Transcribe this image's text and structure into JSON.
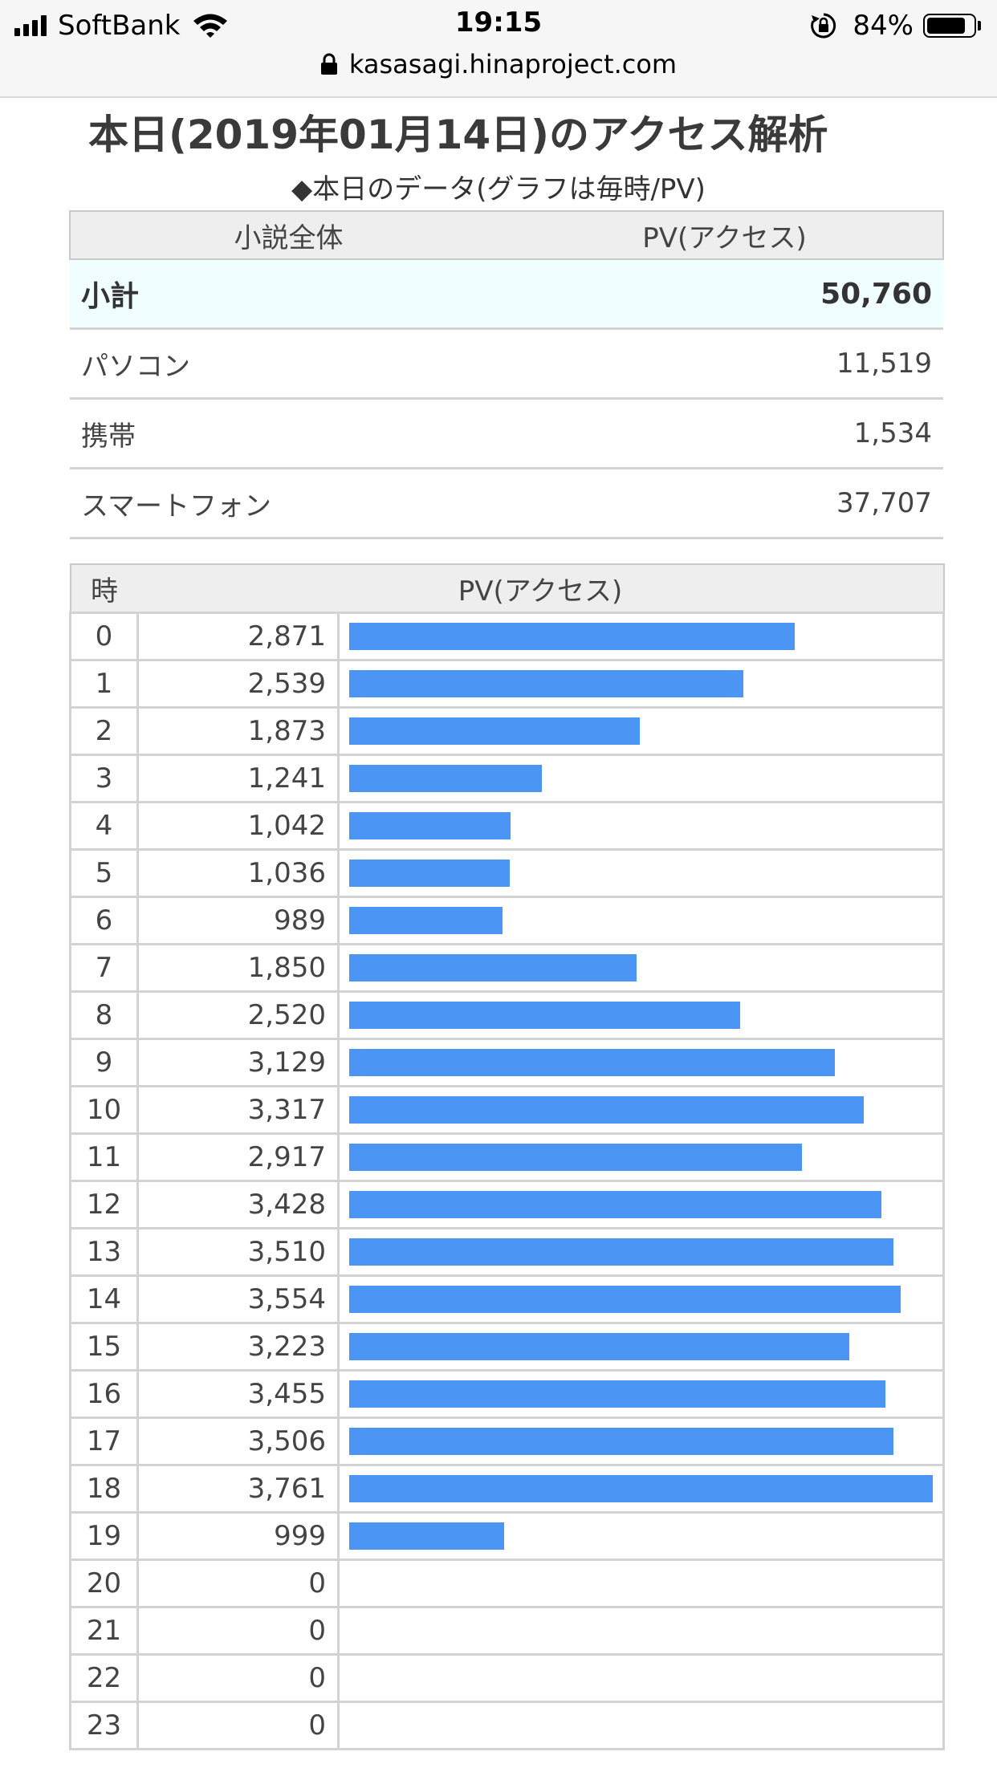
{
  "status_bar": {
    "carrier": "SoftBank",
    "time": "19:15",
    "battery_percent": "84%",
    "battery_level": 0.84,
    "url": "kasasagi.hinaproject.com"
  },
  "page": {
    "title": "本日(2019年01月14日)のアクセス解析",
    "caption": "◆本日のデータ(グラフは毎時/PV)"
  },
  "summary": {
    "header_left": "小説全体",
    "header_right": "PV(アクセス)",
    "rows": [
      {
        "label": "小計",
        "value": "50,760"
      },
      {
        "label": "パソコン",
        "value": "11,519"
      },
      {
        "label": "携帯",
        "value": "1,534"
      },
      {
        "label": "スマートフォン",
        "value": "37,707"
      }
    ]
  },
  "hourly": {
    "header_hour": "時",
    "header_pv": "PV(アクセス)",
    "max_pv": 3761,
    "rows": [
      {
        "hour": "0",
        "pv": "2,871",
        "n": 2871
      },
      {
        "hour": "1",
        "pv": "2,539",
        "n": 2539
      },
      {
        "hour": "2",
        "pv": "1,873",
        "n": 1873
      },
      {
        "hour": "3",
        "pv": "1,241",
        "n": 1241
      },
      {
        "hour": "4",
        "pv": "1,042",
        "n": 1042
      },
      {
        "hour": "5",
        "pv": "1,036",
        "n": 1036
      },
      {
        "hour": "6",
        "pv": "989",
        "n": 989
      },
      {
        "hour": "7",
        "pv": "1,850",
        "n": 1850
      },
      {
        "hour": "8",
        "pv": "2,520",
        "n": 2520
      },
      {
        "hour": "9",
        "pv": "3,129",
        "n": 3129
      },
      {
        "hour": "10",
        "pv": "3,317",
        "n": 3317
      },
      {
        "hour": "11",
        "pv": "2,917",
        "n": 2917
      },
      {
        "hour": "12",
        "pv": "3,428",
        "n": 3428
      },
      {
        "hour": "13",
        "pv": "3,510",
        "n": 3510
      },
      {
        "hour": "14",
        "pv": "3,554",
        "n": 3554
      },
      {
        "hour": "15",
        "pv": "3,223",
        "n": 3223
      },
      {
        "hour": "16",
        "pv": "3,455",
        "n": 3455
      },
      {
        "hour": "17",
        "pv": "3,506",
        "n": 3506
      },
      {
        "hour": "18",
        "pv": "3,761",
        "n": 3761
      },
      {
        "hour": "19",
        "pv": "999",
        "n": 999
      },
      {
        "hour": "20",
        "pv": "0",
        "n": 0
      },
      {
        "hour": "21",
        "pv": "0",
        "n": 0
      },
      {
        "hour": "22",
        "pv": "0",
        "n": 0
      },
      {
        "hour": "23",
        "pv": "0",
        "n": 0
      }
    ]
  },
  "colors": {
    "bar": "#4b96f5",
    "subtotal_bg": "#f1feff",
    "header_bg": "#eeeeee"
  }
}
